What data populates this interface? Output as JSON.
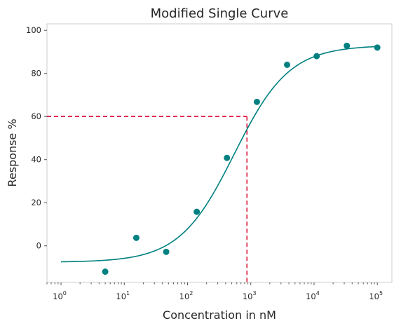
{
  "chart_data": {
    "type": "scatter",
    "title": "Modified Single Curve",
    "xlabel": "Concentration in nM",
    "ylabel": "Response %",
    "xscale": "log",
    "xlim": [
      0.6,
      170000
    ],
    "ylim": [
      -17,
      103
    ],
    "grid": false,
    "x_ticks": [
      {
        "base": "10",
        "exp": "0",
        "value": 1
      },
      {
        "base": "10",
        "exp": "1",
        "value": 10
      },
      {
        "base": "10",
        "exp": "2",
        "value": 100
      },
      {
        "base": "10",
        "exp": "3",
        "value": 1000
      },
      {
        "base": "10",
        "exp": "4",
        "value": 10000
      },
      {
        "base": "10",
        "exp": "5",
        "value": 100000
      }
    ],
    "y_ticks": [
      "0",
      "20",
      "40",
      "60",
      "80",
      "100"
    ],
    "series": [
      {
        "kind": "points",
        "color": "#008080",
        "points": [
          {
            "x": 5,
            "y": -12
          },
          {
            "x": 15.5,
            "y": 3.7
          },
          {
            "x": 46,
            "y": -2.8
          },
          {
            "x": 140,
            "y": 15.8
          },
          {
            "x": 420,
            "y": 40.8
          },
          {
            "x": 1250,
            "y": 66.8
          },
          {
            "x": 3750,
            "y": 84
          },
          {
            "x": 11000,
            "y": 88
          },
          {
            "x": 33000,
            "y": 92.8
          },
          {
            "x": 100000,
            "y": 92
          }
        ]
      },
      {
        "kind": "fitted-curve",
        "color": "#008080",
        "x_range": [
          1,
          100000
        ],
        "bottom": -7.6,
        "top": 93,
        "ec50": 550,
        "hill": 1.0
      }
    ],
    "reference": {
      "color": "#dc143c",
      "x": 870,
      "y": 60
    }
  }
}
